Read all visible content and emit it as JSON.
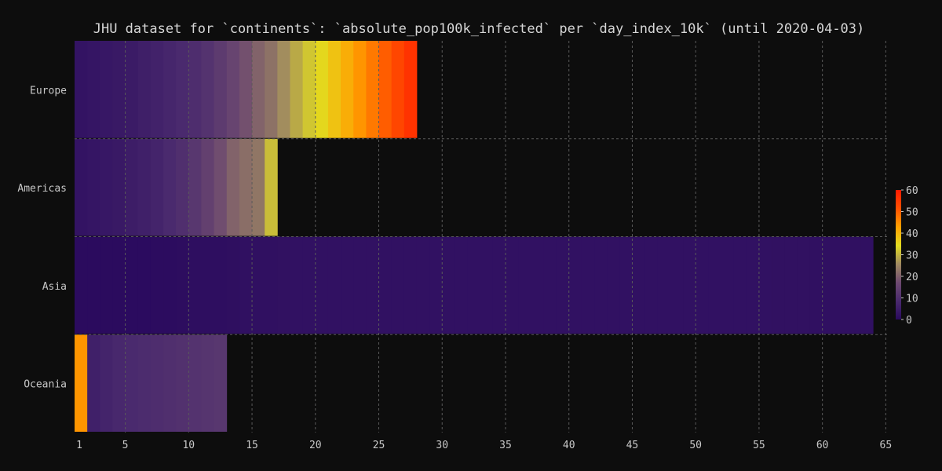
{
  "chart_data": {
    "type": "heatmap",
    "title": "JHU dataset for `continents`: `absolute_pop100k_infected` per `day_index_10k` (until 2020-04-03)",
    "xlabel": "",
    "ylabel": "",
    "x_ticks": [
      1,
      5,
      10,
      15,
      20,
      25,
      30,
      35,
      40,
      45,
      50,
      55,
      60,
      65
    ],
    "xlim": [
      1,
      65
    ],
    "grid": true,
    "colorbar": {
      "ticks": [
        0,
        10,
        20,
        30,
        40,
        50,
        60
      ],
      "range": [
        0,
        60
      ],
      "placement": "right",
      "stops": [
        "#2a0a5e",
        "#4a2a6e",
        "#6e4a70",
        "#a08a60",
        "#e2dc20",
        "#ffa000",
        "#ff5000",
        "#ff1a00"
      ]
    },
    "rows": [
      {
        "name": "Europe",
        "values": [
          2.5,
          3.0,
          3.5,
          4.0,
          4.5,
          5.5,
          6.5,
          7.5,
          8.5,
          9.5,
          11.0,
          13.0,
          15.5,
          18.0,
          20.5,
          22.5,
          26.0,
          29.0,
          32.0,
          35.0,
          38.0,
          41.0,
          44.0,
          47.0,
          50.0,
          53.0,
          56.0
        ]
      },
      {
        "name": "Americas",
        "values": [
          2.5,
          3.0,
          3.5,
          4.0,
          5.0,
          6.0,
          7.0,
          8.5,
          10.0,
          12.0,
          14.5,
          17.5,
          20.5,
          22.0,
          23.0,
          31.0
        ]
      },
      {
        "name": "Asia",
        "values": [
          0.2,
          0.2,
          0.2,
          0.2,
          0.3,
          0.4,
          0.5,
          0.6,
          0.8,
          1.0,
          1.1,
          1.2,
          1.3,
          1.5,
          1.6,
          1.7,
          1.8,
          1.9,
          2.0,
          2.0,
          2.0,
          2.0,
          2.0,
          2.0,
          2.0,
          2.0,
          2.0,
          2.0,
          2.0,
          2.0,
          2.0,
          2.0,
          2.0,
          2.0,
          2.0,
          2.0,
          2.0,
          2.0,
          2.0,
          2.0,
          2.0,
          2.0,
          2.0,
          2.0,
          2.0,
          2.0,
          2.0,
          2.0,
          2.0,
          2.0,
          2.0,
          2.0,
          1.9,
          1.9,
          1.9,
          1.8,
          1.8,
          1.8,
          1.7,
          1.7,
          1.6,
          1.6,
          1.5
        ]
      },
      {
        "name": "Oceania",
        "values": [
          44.0,
          6.0,
          7.0,
          8.0,
          8.5,
          9.0,
          9.5,
          10.0,
          10.5,
          11.0,
          11.5,
          12.0
        ]
      }
    ]
  }
}
